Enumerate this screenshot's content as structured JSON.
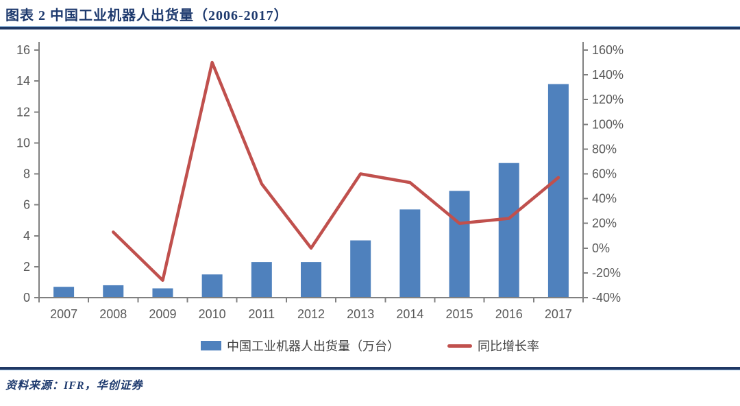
{
  "header": {
    "title": "图表 2 中国工业机器人出货量（2006-2017）"
  },
  "legend": [
    {
      "label": "中国工业机器人出货量（万台）",
      "type": "bar",
      "color": "#4f81bd"
    },
    {
      "label": "同比增长率",
      "type": "line",
      "color": "#c0504d"
    }
  ],
  "footer": {
    "source": "资料来源：IFR，华创证券"
  },
  "colors": {
    "bar_blue": "#4f81bd",
    "line_red": "#c0504d",
    "title_navy": "#1e3a6e",
    "rule_navy": "#1f3864",
    "rule_light_blue": "#9cc2e5",
    "axis_gray": "#808080",
    "tick_text_gray": "#595959"
  },
  "chart_data": {
    "type": "bar",
    "subtype": "bar+line dual axis",
    "title": "中国工业机器人出货量（2006-2017）",
    "categories": [
      "2007",
      "2008",
      "2009",
      "2010",
      "2011",
      "2012",
      "2013",
      "2014",
      "2015",
      "2016",
      "2017"
    ],
    "series": [
      {
        "name": "中国工业机器人出货量（万台）",
        "type": "bar",
        "axis": "left",
        "color": "#4f81bd",
        "values": [
          0.7,
          0.8,
          0.6,
          1.5,
          2.3,
          2.3,
          3.7,
          5.7,
          6.9,
          8.7,
          13.8
        ]
      },
      {
        "name": "同比增长率",
        "type": "line",
        "axis": "right",
        "color": "#c0504d",
        "values": [
          null,
          13,
          -26,
          150,
          52,
          0,
          60,
          53,
          20,
          24,
          57
        ]
      }
    ],
    "left_axis": {
      "min": 0,
      "max": 16,
      "step": 2,
      "tick_labels": [
        "0",
        "2",
        "4",
        "6",
        "8",
        "10",
        "12",
        "14",
        "16"
      ]
    },
    "right_axis": {
      "min": -40,
      "max": 160,
      "step": 20,
      "tick_labels": [
        "-40%",
        "-20%",
        "0%",
        "20%",
        "40%",
        "60%",
        "80%",
        "100%",
        "120%",
        "140%",
        "160%"
      ]
    },
    "grid": false,
    "legend_position": "bottom"
  }
}
